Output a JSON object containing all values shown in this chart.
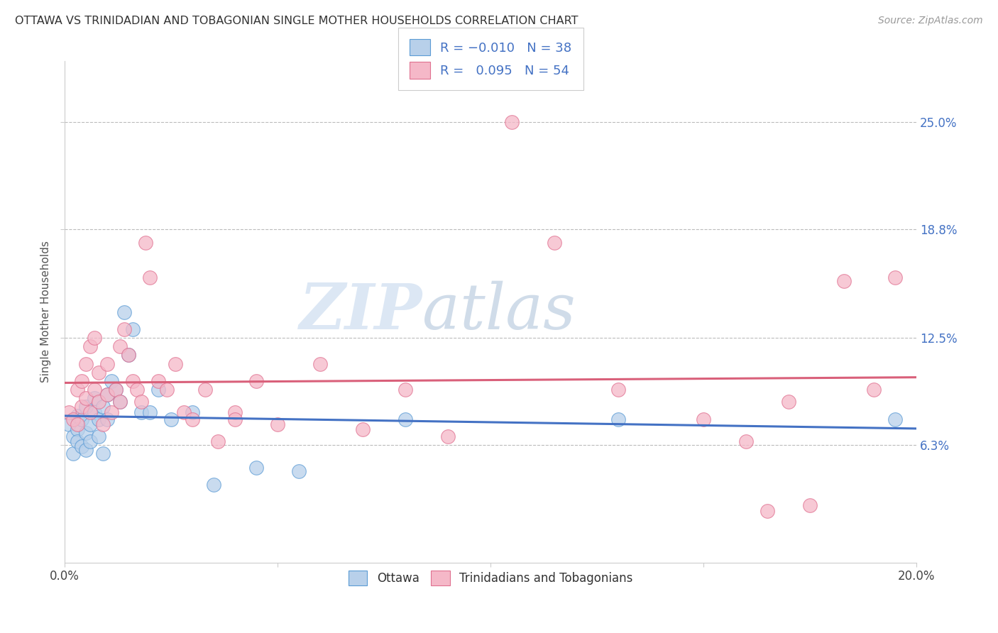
{
  "title": "OTTAWA VS TRINIDADIAN AND TOBAGONIAN SINGLE MOTHER HOUSEHOLDS CORRELATION CHART",
  "source": "Source: ZipAtlas.com",
  "ylabel": "Single Mother Households",
  "xlim": [
    0.0,
    0.2
  ],
  "ylim": [
    -0.005,
    0.285
  ],
  "yticks": [
    0.063,
    0.125,
    0.188,
    0.25
  ],
  "ytick_labels": [
    "6.3%",
    "12.5%",
    "18.8%",
    "25.0%"
  ],
  "xticks": [
    0.0,
    0.05,
    0.1,
    0.15,
    0.2
  ],
  "xtick_labels": [
    "0.0%",
    "",
    "",
    "",
    "20.0%"
  ],
  "watermark_zip": "ZIP",
  "watermark_atlas": "atlas",
  "blue_fill": "#b8d0ea",
  "pink_fill": "#f5b8c8",
  "blue_edge": "#5b9bd5",
  "pink_edge": "#e07090",
  "blue_line": "#4472c4",
  "pink_line": "#d9607a",
  "ottawa_x": [
    0.001,
    0.002,
    0.002,
    0.003,
    0.003,
    0.003,
    0.004,
    0.004,
    0.005,
    0.005,
    0.005,
    0.006,
    0.006,
    0.007,
    0.007,
    0.008,
    0.008,
    0.009,
    0.009,
    0.01,
    0.01,
    0.011,
    0.012,
    0.013,
    0.014,
    0.015,
    0.016,
    0.018,
    0.02,
    0.022,
    0.025,
    0.03,
    0.035,
    0.045,
    0.055,
    0.08,
    0.13,
    0.195
  ],
  "ottawa_y": [
    0.075,
    0.068,
    0.058,
    0.08,
    0.072,
    0.065,
    0.078,
    0.062,
    0.085,
    0.06,
    0.07,
    0.075,
    0.065,
    0.09,
    0.082,
    0.078,
    0.068,
    0.085,
    0.058,
    0.092,
    0.078,
    0.1,
    0.095,
    0.088,
    0.14,
    0.115,
    0.13,
    0.082,
    0.082,
    0.095,
    0.078,
    0.082,
    0.04,
    0.05,
    0.048,
    0.078,
    0.078,
    0.078
  ],
  "trinidad_x": [
    0.001,
    0.002,
    0.003,
    0.003,
    0.004,
    0.004,
    0.005,
    0.005,
    0.006,
    0.006,
    0.007,
    0.007,
    0.008,
    0.008,
    0.009,
    0.01,
    0.01,
    0.011,
    0.012,
    0.013,
    0.013,
    0.014,
    0.015,
    0.016,
    0.017,
    0.018,
    0.019,
    0.02,
    0.022,
    0.024,
    0.026,
    0.028,
    0.03,
    0.033,
    0.036,
    0.04,
    0.045,
    0.05,
    0.06,
    0.07,
    0.08,
    0.09,
    0.105,
    0.115,
    0.13,
    0.15,
    0.16,
    0.165,
    0.17,
    0.175,
    0.183,
    0.19,
    0.195,
    0.04
  ],
  "trinidad_y": [
    0.082,
    0.078,
    0.095,
    0.075,
    0.1,
    0.085,
    0.11,
    0.09,
    0.12,
    0.082,
    0.095,
    0.125,
    0.088,
    0.105,
    0.075,
    0.11,
    0.092,
    0.082,
    0.095,
    0.12,
    0.088,
    0.13,
    0.115,
    0.1,
    0.095,
    0.088,
    0.18,
    0.16,
    0.1,
    0.095,
    0.11,
    0.082,
    0.078,
    0.095,
    0.065,
    0.082,
    0.1,
    0.075,
    0.11,
    0.072,
    0.095,
    0.068,
    0.25,
    0.18,
    0.095,
    0.078,
    0.065,
    0.025,
    0.088,
    0.028,
    0.158,
    0.095,
    0.16,
    0.078
  ]
}
